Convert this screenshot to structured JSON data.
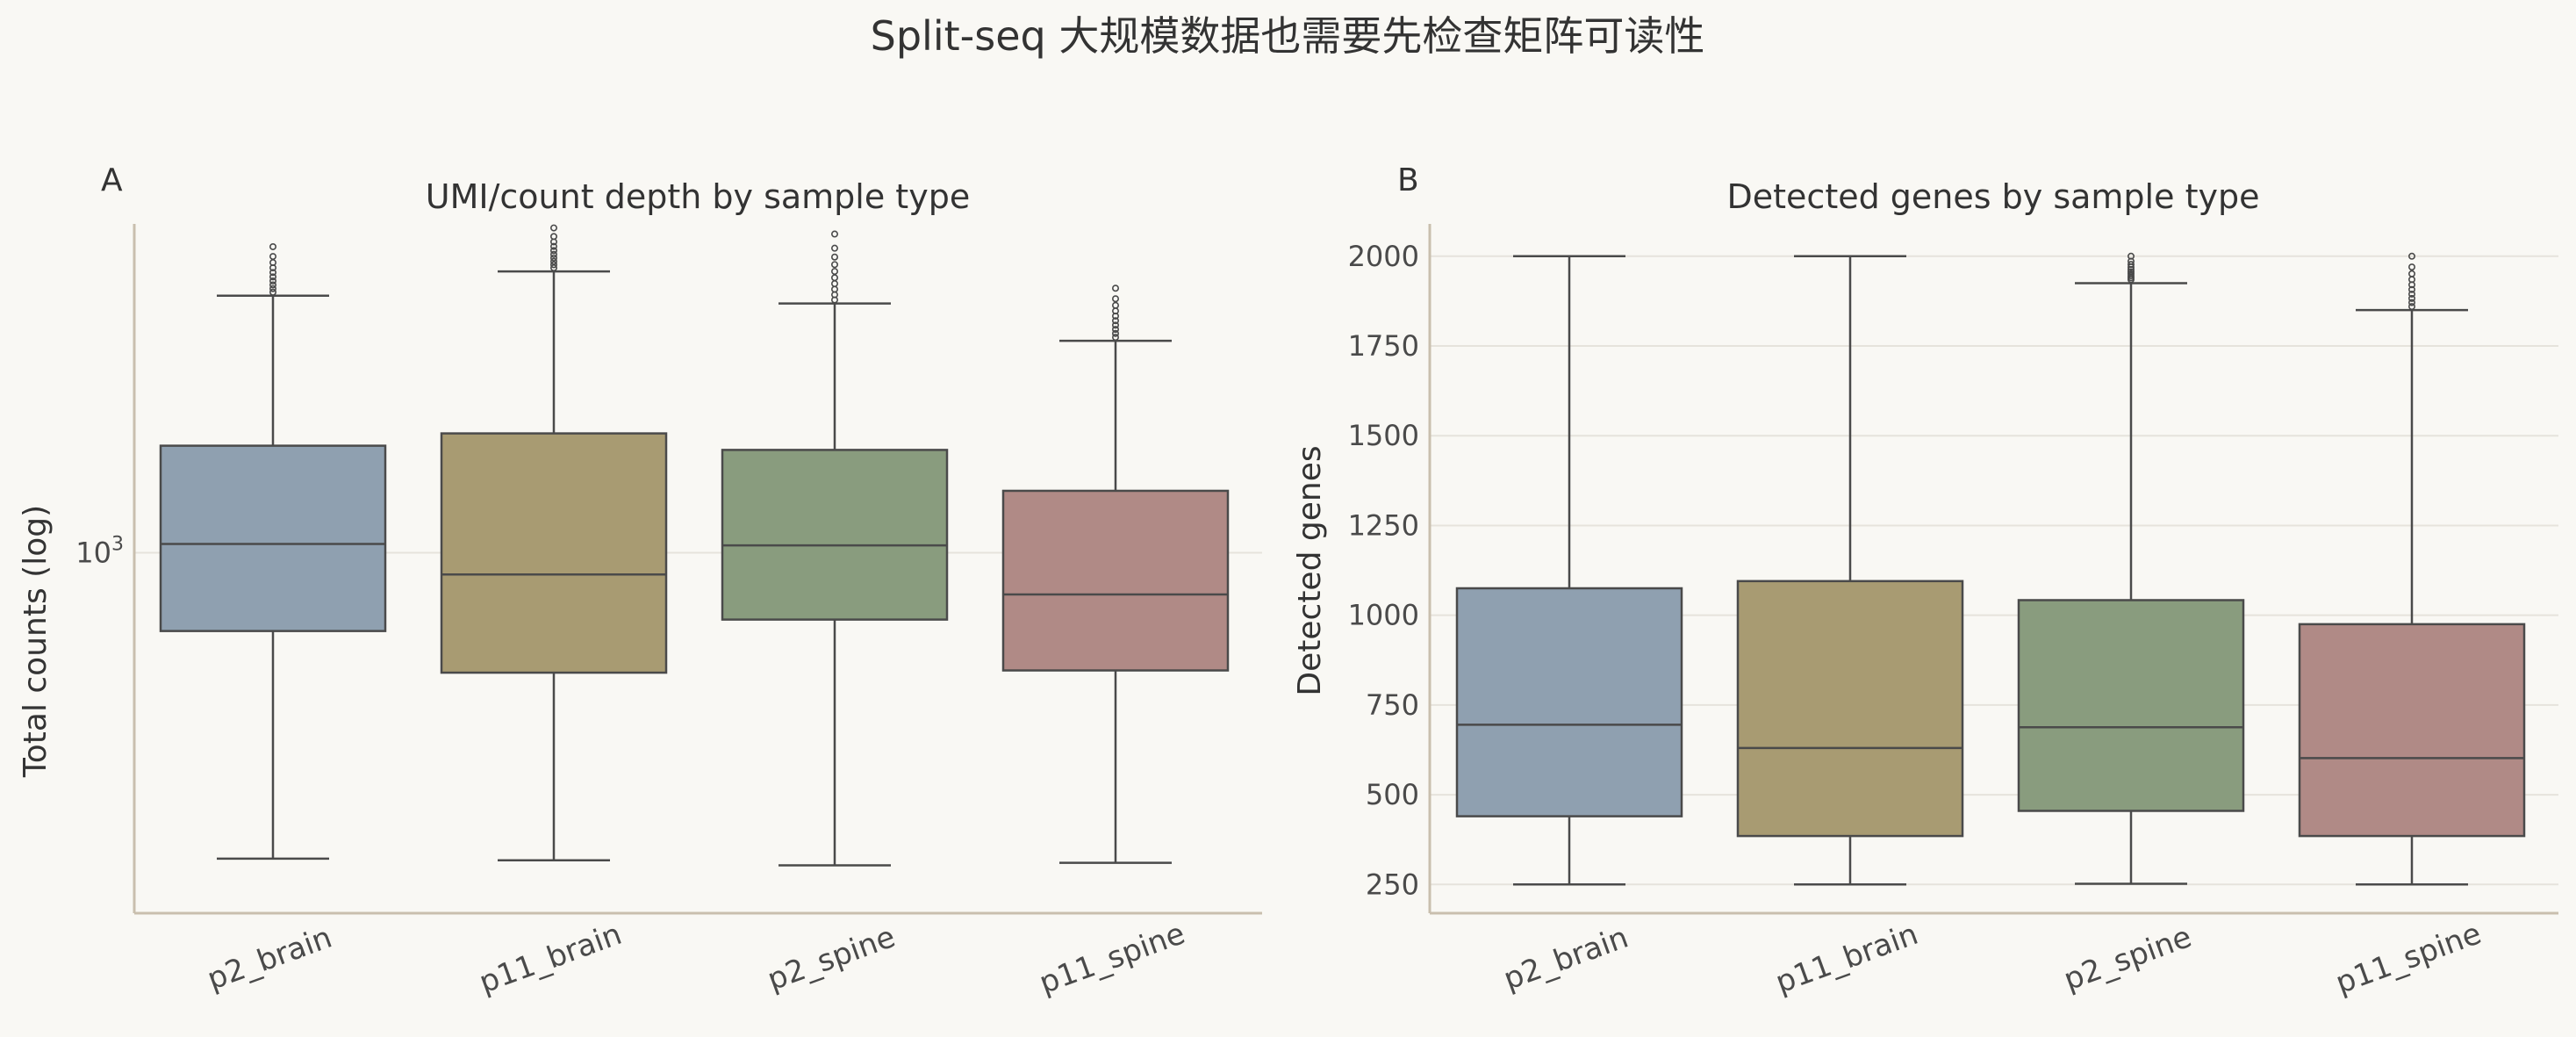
{
  "figure_title": "Split-seq 大规模数据也需要先检查矩阵可读性",
  "chart_data": [
    {
      "type": "box",
      "panel_label": "A",
      "title": "UMI/count depth by sample type",
      "xlabel": "",
      "ylabel": "Total counts (log)",
      "yscale": "log",
      "ylim": [
        300,
        3000
      ],
      "y_ticks": [
        {
          "value": 1000,
          "base": "10",
          "exp": "3"
        }
      ],
      "grid": "horizontal",
      "categories": [
        "p2_brain",
        "p11_brain",
        "p2_spine",
        "p11_spine"
      ],
      "colors": [
        "#8fa0b0",
        "#a89b72",
        "#899c7e",
        "#b08a86"
      ],
      "boxes": [
        {
          "whisker_low": 360,
          "q1": 770,
          "median": 1030,
          "q3": 1430,
          "whisker_high": 2360,
          "outlier_max": 2780
        },
        {
          "whisker_low": 358,
          "q1": 670,
          "median": 930,
          "q3": 1490,
          "whisker_high": 2560,
          "outlier_max": 2960
        },
        {
          "whisker_low": 352,
          "q1": 800,
          "median": 1025,
          "q3": 1410,
          "whisker_high": 2300,
          "outlier_max": 2900
        },
        {
          "whisker_low": 355,
          "q1": 675,
          "median": 870,
          "q3": 1230,
          "whisker_high": 2030,
          "outlier_max": 2420
        }
      ]
    },
    {
      "type": "box",
      "panel_label": "B",
      "title": "Detected genes by sample type",
      "xlabel": "",
      "ylabel": "Detected genes",
      "yscale": "linear",
      "ylim": [
        170,
        2090
      ],
      "y_ticks": [
        250,
        500,
        750,
        1000,
        1250,
        1500,
        1750,
        2000
      ],
      "grid": "horizontal",
      "categories": [
        "p2_brain",
        "p11_brain",
        "p2_spine",
        "p11_spine"
      ],
      "colors": [
        "#8fa0b0",
        "#a89b72",
        "#899c7e",
        "#b08a86"
      ],
      "boxes": [
        {
          "whisker_low": 250,
          "q1": 440,
          "median": 695,
          "q3": 1075,
          "whisker_high": 2000
        },
        {
          "whisker_low": 250,
          "q1": 385,
          "median": 630,
          "q3": 1095,
          "whisker_high": 2000
        },
        {
          "whisker_low": 252,
          "q1": 455,
          "median": 688,
          "q3": 1042,
          "whisker_high": 1925,
          "outlier_max": 2000
        },
        {
          "whisker_low": 250,
          "q1": 385,
          "median": 602,
          "q3": 975,
          "whisker_high": 1850,
          "outlier_max": 2000
        }
      ]
    }
  ]
}
